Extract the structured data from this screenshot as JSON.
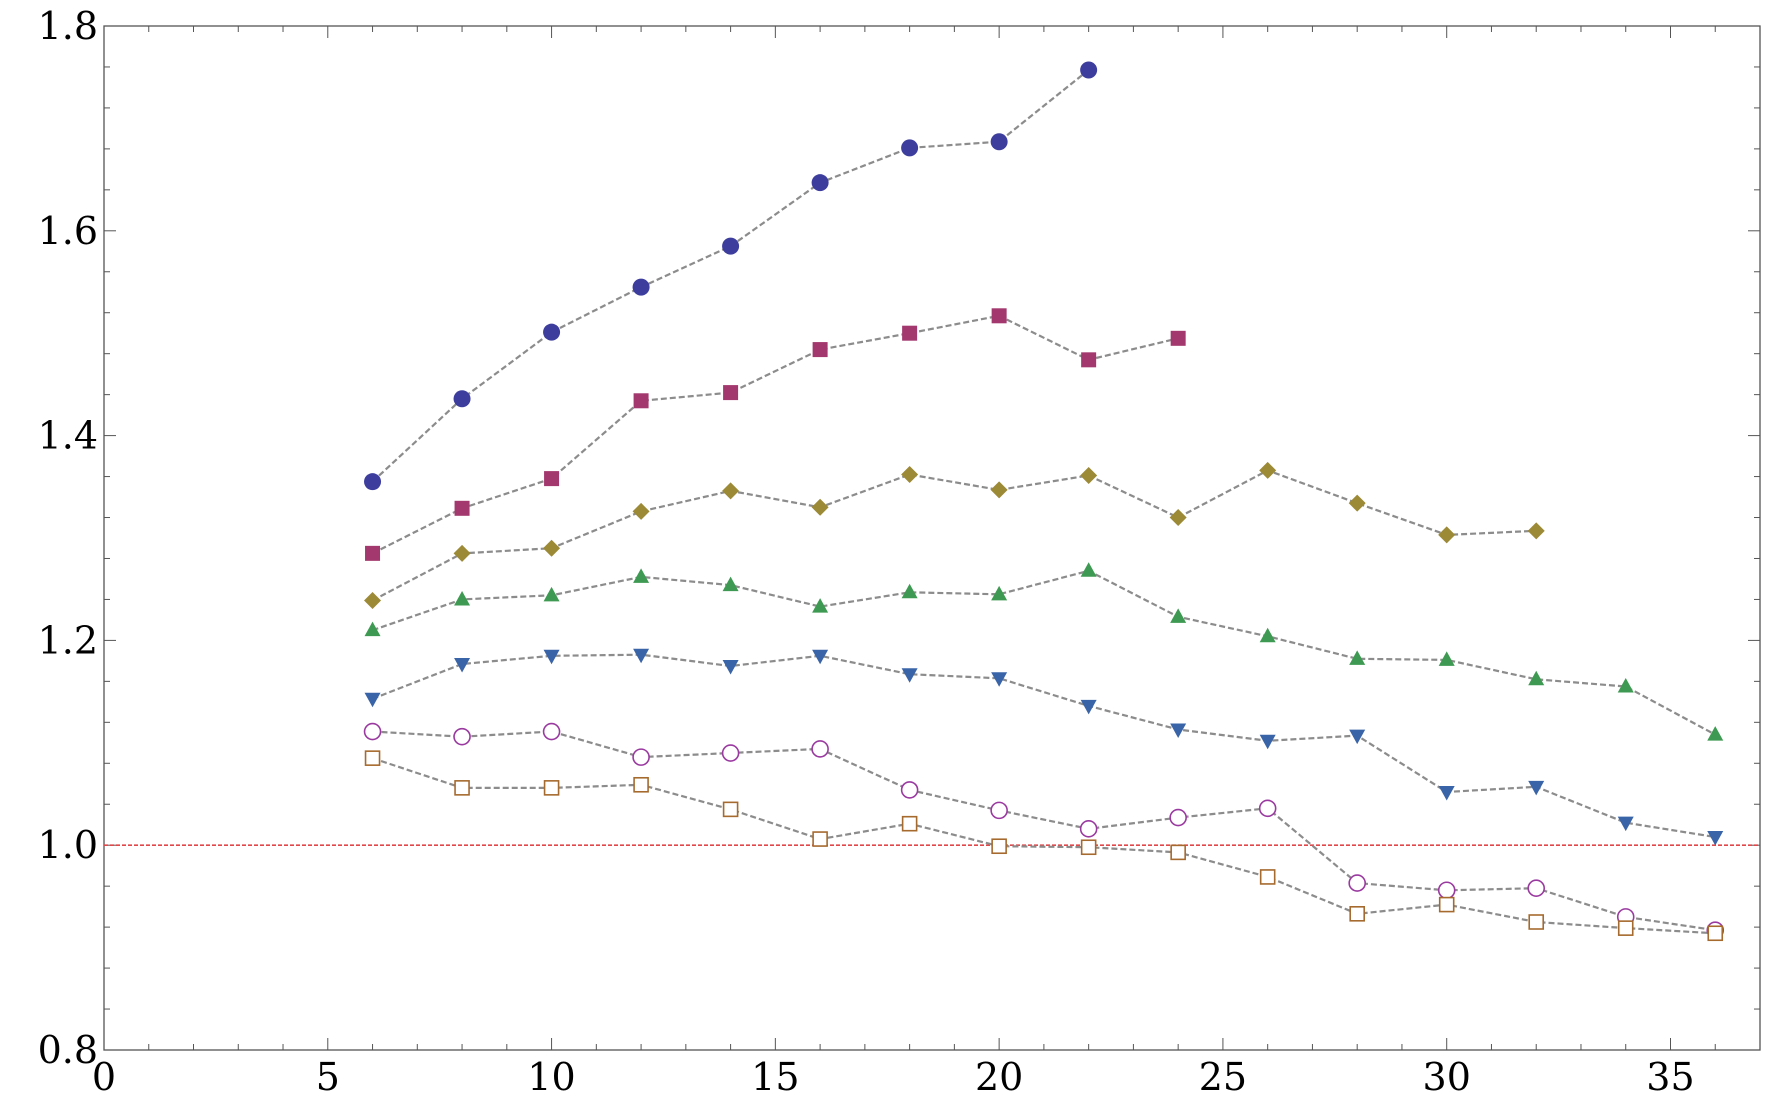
{
  "chart_data": {
    "type": "scatter",
    "title": "",
    "xlabel": "",
    "ylabel": "",
    "xlim": [
      0,
      37
    ],
    "ylim": [
      0.8,
      1.8
    ],
    "x_ticks": [
      0,
      5,
      10,
      15,
      20,
      25,
      30,
      35
    ],
    "y_ticks": [
      0.8,
      1.0,
      1.2,
      1.4,
      1.6,
      1.8
    ],
    "x_tick_labels": [
      "0",
      "5",
      "10",
      "15",
      "20",
      "25",
      "30",
      "35"
    ],
    "y_tick_labels": [
      "0.8",
      "1.0",
      "1.2",
      "1.4",
      "1.6",
      "1.8"
    ],
    "reference_line": {
      "y": 1.0,
      "color": "#e0484a"
    },
    "line_color": "#8c8c8c",
    "grid": false,
    "legend": "none",
    "series": [
      {
        "marker": "circle-filled",
        "color": "#3d3d9e",
        "x": [
          6,
          8,
          10,
          12,
          14,
          16,
          18,
          20,
          22
        ],
        "y": [
          1.355,
          1.436,
          1.501,
          1.545,
          1.585,
          1.647,
          1.681,
          1.687,
          1.757
        ]
      },
      {
        "marker": "square-filled",
        "color": "#a3386e",
        "x": [
          6,
          8,
          10,
          12,
          14,
          16,
          18,
          20,
          22,
          24
        ],
        "y": [
          1.285,
          1.329,
          1.358,
          1.434,
          1.442,
          1.484,
          1.5,
          1.517,
          1.474,
          1.495
        ]
      },
      {
        "marker": "diamond-filled",
        "color": "#9c8a36",
        "x": [
          6,
          8,
          10,
          12,
          14,
          16,
          18,
          20,
          22,
          24,
          26,
          28,
          30,
          32
        ],
        "y": [
          1.239,
          1.285,
          1.29,
          1.326,
          1.346,
          1.33,
          1.362,
          1.347,
          1.361,
          1.32,
          1.366,
          1.334,
          1.303,
          1.307
        ]
      },
      {
        "marker": "triangle-up-filled",
        "color": "#3e9a52",
        "x": [
          6,
          8,
          10,
          12,
          14,
          16,
          18,
          20,
          22,
          24,
          26,
          28,
          30,
          32,
          34,
          36
        ],
        "y": [
          1.21,
          1.24,
          1.244,
          1.262,
          1.254,
          1.233,
          1.247,
          1.245,
          1.268,
          1.223,
          1.204,
          1.182,
          1.181,
          1.162,
          1.155,
          1.108
        ]
      },
      {
        "marker": "triangle-down-filled",
        "color": "#3a64a8",
        "x": [
          6,
          8,
          10,
          12,
          14,
          16,
          18,
          20,
          22,
          24,
          26,
          28,
          30,
          32,
          34,
          36
        ],
        "y": [
          1.143,
          1.177,
          1.185,
          1.186,
          1.175,
          1.185,
          1.167,
          1.163,
          1.136,
          1.113,
          1.102,
          1.107,
          1.052,
          1.057,
          1.022,
          1.008
        ]
      },
      {
        "marker": "circle-open",
        "color": "#9a3aa0",
        "x": [
          6,
          8,
          10,
          12,
          14,
          16,
          18,
          20,
          22,
          24,
          26,
          28,
          30,
          32,
          34,
          36
        ],
        "y": [
          1.111,
          1.106,
          1.111,
          1.086,
          1.09,
          1.094,
          1.054,
          1.034,
          1.016,
          1.027,
          1.036,
          0.963,
          0.956,
          0.958,
          0.93,
          0.917
        ]
      },
      {
        "marker": "square-open",
        "color": "#a66a2e",
        "x": [
          6,
          8,
          10,
          12,
          14,
          16,
          18,
          20,
          22,
          24,
          26,
          28,
          30,
          32,
          34,
          36
        ],
        "y": [
          1.085,
          1.056,
          1.056,
          1.059,
          1.035,
          1.006,
          1.021,
          0.999,
          0.998,
          0.993,
          0.969,
          0.933,
          0.942,
          0.925,
          0.919,
          0.914
        ]
      }
    ]
  }
}
